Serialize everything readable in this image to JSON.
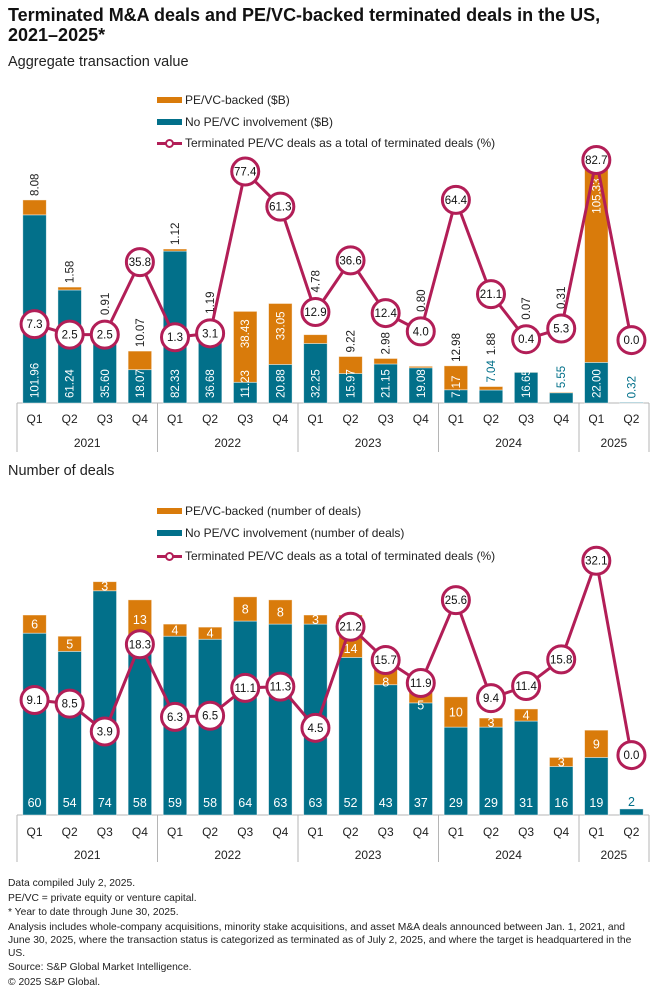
{
  "title": "Terminated M&A deals and PE/VC-backed terminated deals in the US, 2021–2025*",
  "colors": {
    "pe_vc_backed": "#D97B0B",
    "no_pe_vc": "#02708A",
    "pe_vc_share_line": "#B21E57"
  },
  "chart_data": [
    {
      "type": "bar",
      "stacked": true,
      "title": "Aggregate transaction value",
      "unit": "$B",
      "value_decimals": 2,
      "categories": [
        "Q1",
        "Q2",
        "Q3",
        "Q4",
        "Q1",
        "Q2",
        "Q3",
        "Q4",
        "Q1",
        "Q2",
        "Q3",
        "Q4",
        "Q1",
        "Q2",
        "Q3",
        "Q4",
        "Q1",
        "Q2"
      ],
      "category_groups": [
        {
          "label": "2021",
          "count": 4
        },
        {
          "label": "2022",
          "count": 4
        },
        {
          "label": "2023",
          "count": 4
        },
        {
          "label": "2024",
          "count": 4
        },
        {
          "label": "2025",
          "count": 2
        }
      ],
      "legend": [
        {
          "label": "PE/VC-backed ($B)",
          "kind": "bar",
          "series": "pe_vc_backed"
        },
        {
          "label": "No PE/VC involvement ($B)",
          "kind": "bar",
          "series": "no_pe_vc"
        },
        {
          "label": "Terminated PE/VC deals as a total of terminated deals (%)",
          "kind": "line",
          "series": "pe_vc_share"
        }
      ],
      "legend_position": "top-center",
      "series": [
        {
          "key": "no_pe_vc",
          "name": "No PE/VC involvement ($B)",
          "type": "bar",
          "values": [
            101.96,
            61.24,
            35.6,
            18.07,
            82.33,
            36.68,
            11.23,
            20.88,
            32.25,
            15.97,
            21.15,
            19.08,
            7.17,
            7.04,
            16.65,
            5.55,
            22.0,
            0.32
          ]
        },
        {
          "key": "pe_vc_backed",
          "name": "PE/VC-backed ($B)",
          "type": "bar",
          "values": [
            8.08,
            1.58,
            0.91,
            10.07,
            1.12,
            1.19,
            38.43,
            33.05,
            4.78,
            9.22,
            2.98,
            0.8,
            12.98,
            1.88,
            0.07,
            0.31,
            105.33,
            null
          ]
        },
        {
          "key": "pe_vc_share",
          "name": "Terminated PE/VC deals as a total of terminated deals (%)",
          "type": "line",
          "axis": "secondary",
          "values": [
            7.3,
            2.5,
            2.5,
            35.8,
            1.3,
            3.1,
            77.4,
            61.3,
            12.9,
            36.6,
            12.4,
            4.0,
            64.4,
            21.1,
            0.4,
            5.3,
            82.7,
            0.0
          ]
        }
      ],
      "ylim": [
        0,
        134.4
      ],
      "y2lim": [
        -28.9,
        85.0
      ],
      "y_axis_visible": false,
      "grid": false
    },
    {
      "type": "bar",
      "stacked": true,
      "title": "Number of deals",
      "unit": "number of deals",
      "value_decimals": 0,
      "categories": [
        "Q1",
        "Q2",
        "Q3",
        "Q4",
        "Q1",
        "Q2",
        "Q3",
        "Q4",
        "Q1",
        "Q2",
        "Q3",
        "Q4",
        "Q1",
        "Q2",
        "Q3",
        "Q4",
        "Q1",
        "Q2"
      ],
      "category_groups": [
        {
          "label": "2021",
          "count": 4
        },
        {
          "label": "2022",
          "count": 4
        },
        {
          "label": "2023",
          "count": 4
        },
        {
          "label": "2024",
          "count": 4
        },
        {
          "label": "2025",
          "count": 2
        }
      ],
      "legend": [
        {
          "label": "PE/VC-backed (number of deals)",
          "kind": "bar",
          "series": "pe_vc_backed"
        },
        {
          "label": "No PE/VC involvement (number of deals)",
          "kind": "bar",
          "series": "no_pe_vc"
        },
        {
          "label": "Terminated PE/VC deals as a total of terminated deals (%)",
          "kind": "line",
          "series": "pe_vc_share"
        }
      ],
      "legend_position": "top-center",
      "series": [
        {
          "key": "no_pe_vc",
          "name": "No PE/VC involvement (number of deals)",
          "type": "bar",
          "values": [
            60,
            54,
            74,
            58,
            59,
            58,
            64,
            63,
            63,
            52,
            43,
            37,
            29,
            29,
            31,
            16,
            19,
            2
          ]
        },
        {
          "key": "pe_vc_backed",
          "name": "PE/VC-backed (number of deals)",
          "type": "bar",
          "values": [
            6,
            5,
            3,
            13,
            4,
            4,
            8,
            8,
            3,
            14,
            8,
            5,
            10,
            3,
            4,
            3,
            9,
            null
          ]
        },
        {
          "key": "pe_vc_share",
          "name": "Terminated PE/VC deals as a total of terminated deals (%)",
          "type": "line",
          "axis": "secondary",
          "values": [
            9.1,
            8.5,
            3.9,
            18.3,
            6.3,
            6.5,
            11.1,
            11.3,
            4.5,
            21.2,
            15.7,
            11.9,
            25.6,
            9.4,
            11.4,
            15.8,
            32.1,
            0.0
          ]
        }
      ],
      "ylim": [
        0,
        89.1
      ],
      "y2lim": [
        -9.9,
        34.7
      ],
      "y_axis_visible": false,
      "grid": false
    }
  ],
  "footer": {
    "compiled": "Data compiled July 2, 2025.",
    "abbreviation": "PE/VC = private equity or venture capital.",
    "ytd_note": "* Year to date through June 30, 2025.",
    "analysis": "Analysis includes whole-company acquisitions, minority stake acquisitions, and asset M&A deals announced between Jan. 1, 2021, and June 30, 2025, where the transaction status is categorized as terminated as of July 2, 2025, and where the target is headquartered in the US.",
    "source": "Source: S&P Global Market Intelligence.",
    "copyright": "© 2025 S&P Global."
  }
}
